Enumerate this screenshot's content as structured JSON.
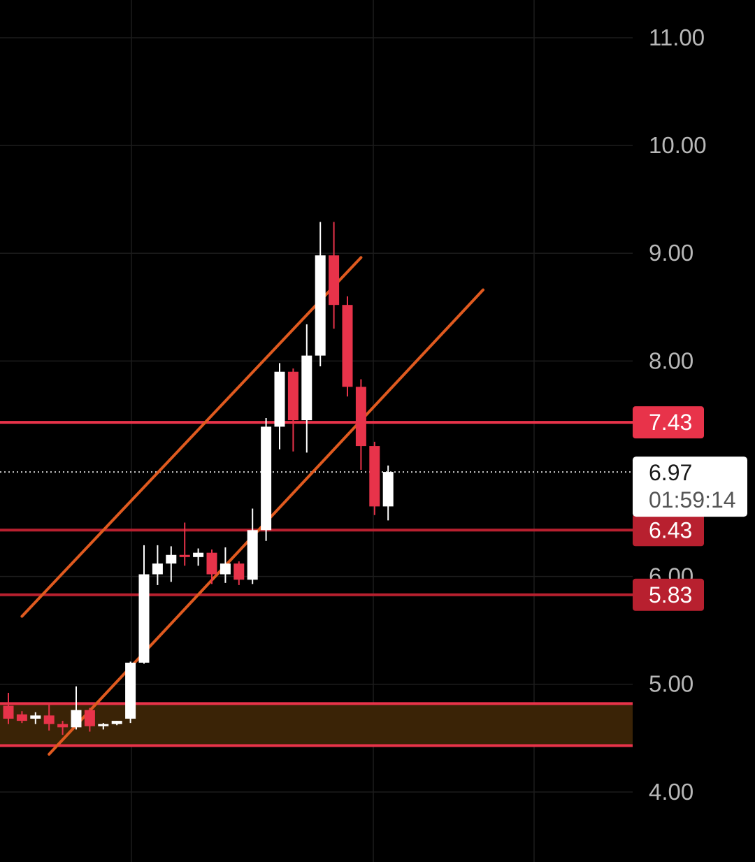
{
  "chart_data": {
    "type": "candlestick",
    "title": "",
    "ylim": [
      3.35,
      11.35
    ],
    "grid": true,
    "y_ticks": [
      "11.00",
      "10.00",
      "9.00",
      "8.00",
      "6.00",
      "5.00",
      "4.00"
    ],
    "current_price": {
      "label": "6.97",
      "value": 6.97,
      "countdown": "01:59:14"
    },
    "levels": [
      {
        "label": "7.43",
        "value": 7.43,
        "color": "#e8334a"
      },
      {
        "label": "6.43",
        "value": 6.43,
        "color": "#b8202f"
      },
      {
        "label": "5.83",
        "value": 5.83,
        "color": "#b8202f"
      }
    ],
    "zone": {
      "top": 4.82,
      "bottom": 4.43,
      "border": "#e8334a",
      "fill": "#3a2306"
    },
    "channel_lines": [
      {
        "from": [
          1.0,
          5.63
        ],
        "to": [
          26.0,
          8.96
        ]
      },
      {
        "from": [
          3.0,
          4.35
        ],
        "to": [
          35.0,
          8.66
        ]
      }
    ],
    "candles": [
      {
        "o": 4.8,
        "h": 4.92,
        "l": 4.63,
        "c": 4.68
      },
      {
        "o": 4.72,
        "h": 4.75,
        "l": 4.64,
        "c": 4.66
      },
      {
        "o": 4.68,
        "h": 4.74,
        "l": 4.63,
        "c": 4.71
      },
      {
        "o": 4.71,
        "h": 4.83,
        "l": 4.57,
        "c": 4.63
      },
      {
        "o": 4.63,
        "h": 4.66,
        "l": 4.53,
        "c": 4.6
      },
      {
        "o": 4.6,
        "h": 4.98,
        "l": 4.58,
        "c": 4.76
      },
      {
        "o": 4.76,
        "h": 4.78,
        "l": 4.56,
        "c": 4.61
      },
      {
        "o": 4.61,
        "h": 4.64,
        "l": 4.58,
        "c": 4.63
      },
      {
        "o": 4.63,
        "h": 4.66,
        "l": 4.62,
        "c": 4.66
      },
      {
        "o": 4.68,
        "h": 5.21,
        "l": 4.64,
        "c": 5.2
      },
      {
        "o": 5.2,
        "h": 6.29,
        "l": 5.19,
        "c": 6.02
      },
      {
        "o": 6.02,
        "h": 6.29,
        "l": 5.92,
        "c": 6.12
      },
      {
        "o": 6.12,
        "h": 6.28,
        "l": 5.95,
        "c": 6.2
      },
      {
        "o": 6.2,
        "h": 6.5,
        "l": 6.1,
        "c": 6.18
      },
      {
        "o": 6.18,
        "h": 6.26,
        "l": 6.1,
        "c": 6.22
      },
      {
        "o": 6.22,
        "h": 6.25,
        "l": 5.93,
        "c": 6.02
      },
      {
        "o": 6.02,
        "h": 6.27,
        "l": 5.94,
        "c": 6.12
      },
      {
        "o": 6.12,
        "h": 6.14,
        "l": 5.92,
        "c": 5.97
      },
      {
        "o": 5.97,
        "h": 6.63,
        "l": 5.93,
        "c": 6.43
      },
      {
        "o": 6.43,
        "h": 7.47,
        "l": 6.33,
        "c": 7.39
      },
      {
        "o": 7.39,
        "h": 7.98,
        "l": 7.18,
        "c": 7.9
      },
      {
        "o": 7.9,
        "h": 7.93,
        "l": 7.16,
        "c": 7.45
      },
      {
        "o": 7.45,
        "h": 8.34,
        "l": 7.15,
        "c": 8.05
      },
      {
        "o": 8.05,
        "h": 9.29,
        "l": 7.95,
        "c": 8.98
      },
      {
        "o": 8.98,
        "h": 9.29,
        "l": 8.3,
        "c": 8.52
      },
      {
        "o": 8.52,
        "h": 8.6,
        "l": 7.67,
        "c": 7.76
      },
      {
        "o": 7.76,
        "h": 7.83,
        "l": 6.99,
        "c": 7.21
      },
      {
        "o": 7.21,
        "h": 7.25,
        "l": 6.57,
        "c": 6.65
      },
      {
        "o": 6.65,
        "h": 7.03,
        "l": 6.52,
        "c": 6.97
      }
    ],
    "colors": {
      "up": "#ffffff",
      "down": "#e8334a",
      "channel": "#e05a1f",
      "grid": "#1c1c1c",
      "current_line": "#cfcfcf"
    }
  }
}
